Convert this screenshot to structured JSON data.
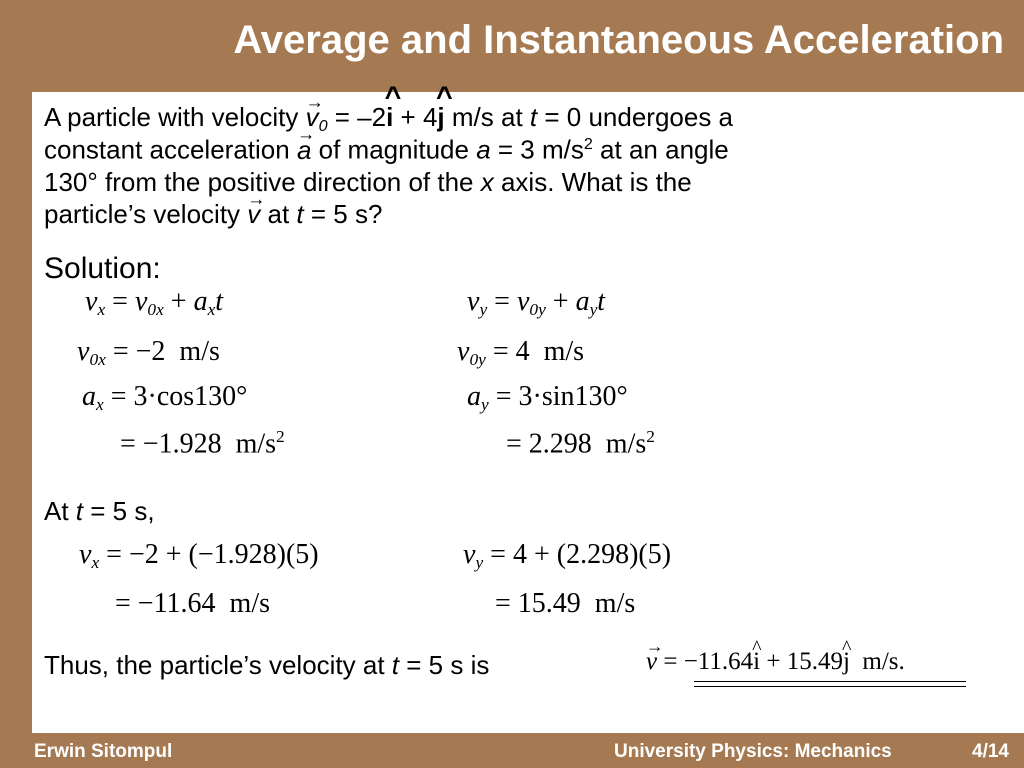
{
  "header": {
    "title": "Average and Instantaneous Acceleration"
  },
  "problem": [
    [
      "A particle with velocity ",
      {
        "vec": "v"
      },
      {
        "sub": "0"
      },
      " = –2",
      {
        "hat": "i"
      },
      " + 4",
      {
        "hat": "j"
      },
      " m/s at ",
      {
        "i": "t"
      },
      " = 0 undergoes a"
    ],
    [
      "constant acceleration ",
      {
        "vec": "a"
      },
      " of magnitude ",
      {
        "i": "a"
      },
      " = 3 m/s",
      {
        "sup": "2"
      },
      " at an angle"
    ],
    [
      "130° from the positive direction of the ",
      {
        "i": "x"
      },
      " axis. What is the"
    ],
    [
      "particle’s velocity ",
      {
        "vec": "v"
      },
      " at ",
      {
        "i": "t"
      },
      " = 5 s?"
    ]
  ],
  "solution": {
    "label": "Solution:",
    "left": [
      [
        {
          "i": "v"
        },
        {
          "sub": "x"
        },
        " = ",
        {
          "i": "v"
        },
        {
          "sub": "0x"
        },
        " + ",
        {
          "i": "a"
        },
        {
          "sub": "x"
        },
        {
          "i": "t"
        }
      ],
      [
        {
          "i": "v"
        },
        {
          "sub": "0x"
        },
        " = −2  m/s"
      ],
      [
        {
          "i": "a"
        },
        {
          "sub": "x"
        },
        " = 3·cos130°"
      ],
      [
        "= −1.928  m/s",
        {
          "sup": "2"
        }
      ]
    ],
    "right": [
      [
        {
          "i": "v"
        },
        {
          "sub": "y"
        },
        " = ",
        {
          "i": "v"
        },
        {
          "sub": "0y"
        },
        " + ",
        {
          "i": "a"
        },
        {
          "sub": "y"
        },
        {
          "i": "t"
        }
      ],
      [
        {
          "i": "v"
        },
        {
          "sub": "0y"
        },
        " = 4  m/s"
      ],
      [
        {
          "i": "a"
        },
        {
          "sub": "y"
        },
        " = 3·sin130°"
      ],
      [
        "= 2.298  m/s",
        {
          "sup": "2"
        }
      ]
    ]
  },
  "final_step": {
    "label": [
      "At ",
      {
        "i": "t"
      },
      " = 5 s,"
    ],
    "left": [
      [
        {
          "i": "v"
        },
        {
          "sub": "x"
        },
        " = −2 + (−1.928)(5)"
      ],
      [
        "= −11.64  m/s"
      ]
    ],
    "right": [
      [
        {
          "i": "v"
        },
        {
          "sub": "y"
        },
        " = 4 + (2.298)(5)"
      ],
      [
        "= 15.49  m/s"
      ]
    ]
  },
  "conclusion": {
    "text": [
      "Thus, the particle’s velocity at ",
      {
        "i": "t"
      },
      " = 5 s is"
    ],
    "result": [
      {
        "vec": "v"
      },
      " = −11.64",
      {
        "hat": "i"
      },
      " + 15.49",
      {
        "hat": "j"
      },
      "  m/s."
    ]
  },
  "footer": {
    "author": "Erwin Sitompul",
    "course": "University Physics: Mechanics",
    "page": "4/14"
  }
}
